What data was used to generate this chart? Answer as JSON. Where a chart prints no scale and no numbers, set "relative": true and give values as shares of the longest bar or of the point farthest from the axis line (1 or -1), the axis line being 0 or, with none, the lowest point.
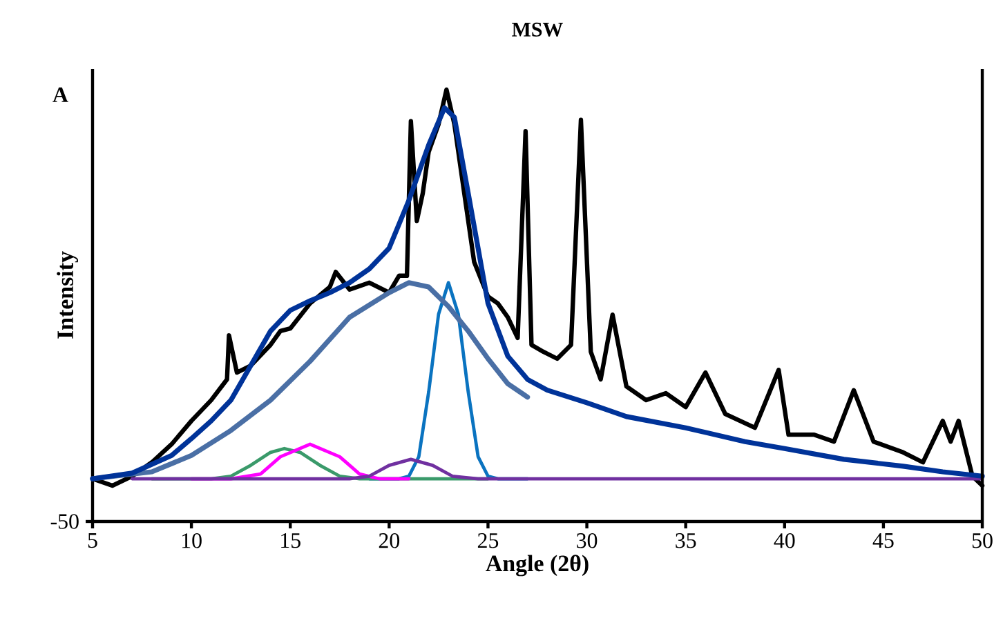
{
  "chart_data": {
    "type": "line",
    "title": "MSW",
    "xlabel": "Angle (2θ)",
    "ylabel": "Intensity",
    "relative": true,
    "xlim": [
      5,
      50
    ],
    "xticks": [
      5,
      10,
      15,
      20,
      25,
      30,
      35,
      40,
      45,
      50
    ],
    "grid": false,
    "annotations": [
      "A",
      "-50"
    ],
    "series": [
      {
        "color": "#000000",
        "x": [
          5,
          6,
          7,
          8,
          9,
          10,
          11,
          11.8,
          11.9,
          12.3,
          13,
          14,
          14.5,
          15,
          16,
          17,
          17.3,
          18,
          19,
          20,
          20.5,
          20.9,
          21.1,
          21.4,
          21.7,
          22,
          22.5,
          22.9,
          23.3,
          23.8,
          24.3,
          25,
          25.5,
          26,
          26.5,
          26.9,
          27.2,
          27.8,
          28.5,
          29.2,
          29.7,
          30.2,
          30.7,
          31.3,
          32,
          33,
          34,
          35,
          36,
          37,
          38.5,
          39.7,
          40.2,
          41.5,
          42.5,
          43.5,
          44.5,
          46,
          47,
          48,
          48.4,
          48.8,
          49.5,
          50
        ],
        "values": [
          0.099,
          0.083,
          0.105,
          0.137,
          0.179,
          0.233,
          0.281,
          0.329,
          0.431,
          0.345,
          0.361,
          0.409,
          0.441,
          0.447,
          0.505,
          0.543,
          0.578,
          0.537,
          0.553,
          0.53,
          0.569,
          0.569,
          0.927,
          0.696,
          0.76,
          0.856,
          0.92,
          1.0,
          0.92,
          0.76,
          0.601,
          0.521,
          0.505,
          0.473,
          0.425,
          0.904,
          0.409,
          0.393,
          0.377,
          0.409,
          0.93,
          0.393,
          0.329,
          0.479,
          0.313,
          0.281,
          0.297,
          0.265,
          0.345,
          0.249,
          0.217,
          0.351,
          0.201,
          0.201,
          0.185,
          0.304,
          0.185,
          0.16,
          0.137,
          0.233,
          0.185,
          0.233,
          0.105,
          0.083
        ]
      },
      {
        "color": "#4a6fa5",
        "x": [
          5,
          8,
          10,
          12,
          14,
          16,
          18,
          20,
          21,
          22,
          23,
          24,
          25,
          26,
          27
        ],
        "values": [
          0.099,
          0.115,
          0.153,
          0.211,
          0.281,
          0.371,
          0.473,
          0.53,
          0.553,
          0.543,
          0.498,
          0.441,
          0.377,
          0.319,
          0.288
        ]
      },
      {
        "color": "#003399",
        "x": [
          5,
          7,
          9,
          10,
          11,
          12,
          13,
          14,
          15,
          16,
          17,
          18,
          19,
          20,
          21,
          22,
          22.8,
          23.3,
          24,
          25,
          26,
          27,
          28,
          30,
          32,
          35,
          38,
          40,
          43,
          46,
          48,
          50
        ],
        "values": [
          0.099,
          0.112,
          0.153,
          0.192,
          0.233,
          0.281,
          0.361,
          0.441,
          0.489,
          0.511,
          0.53,
          0.553,
          0.585,
          0.633,
          0.744,
          0.872,
          0.958,
          0.936,
          0.76,
          0.505,
          0.383,
          0.329,
          0.304,
          0.275,
          0.243,
          0.217,
          0.185,
          0.169,
          0.144,
          0.128,
          0.115,
          0.105
        ]
      },
      {
        "color": "#0a73c0",
        "x": [
          19,
          20.5,
          21,
          21.5,
          22,
          22.5,
          23,
          23.5,
          24,
          24.5,
          25,
          25.5,
          27
        ],
        "values": [
          0.099,
          0.099,
          0.105,
          0.15,
          0.3,
          0.48,
          0.553,
          0.48,
          0.3,
          0.15,
          0.105,
          0.099,
          0.099
        ]
      },
      {
        "color": "#3a9a6a",
        "x": [
          8,
          11,
          12,
          13,
          14,
          14.7,
          15.5,
          16.5,
          17.5,
          18.5,
          25
        ],
        "values": [
          0.099,
          0.099,
          0.105,
          0.13,
          0.16,
          0.169,
          0.16,
          0.13,
          0.105,
          0.099,
          0.099
        ]
      },
      {
        "color": "#ff00ff",
        "x": [
          10,
          12,
          13.5,
          14.5,
          16,
          17.5,
          18.5,
          19.5,
          21
        ],
        "values": [
          0.099,
          0.099,
          0.11,
          0.15,
          0.179,
          0.15,
          0.11,
          0.099,
          0.099
        ]
      },
      {
        "color": "#7030a0",
        "x": [
          7,
          18,
          19,
          20,
          21.1,
          22.2,
          23.2,
          24.5,
          50
        ],
        "values": [
          0.099,
          0.099,
          0.105,
          0.13,
          0.144,
          0.13,
          0.105,
          0.099,
          0.099
        ]
      }
    ]
  }
}
